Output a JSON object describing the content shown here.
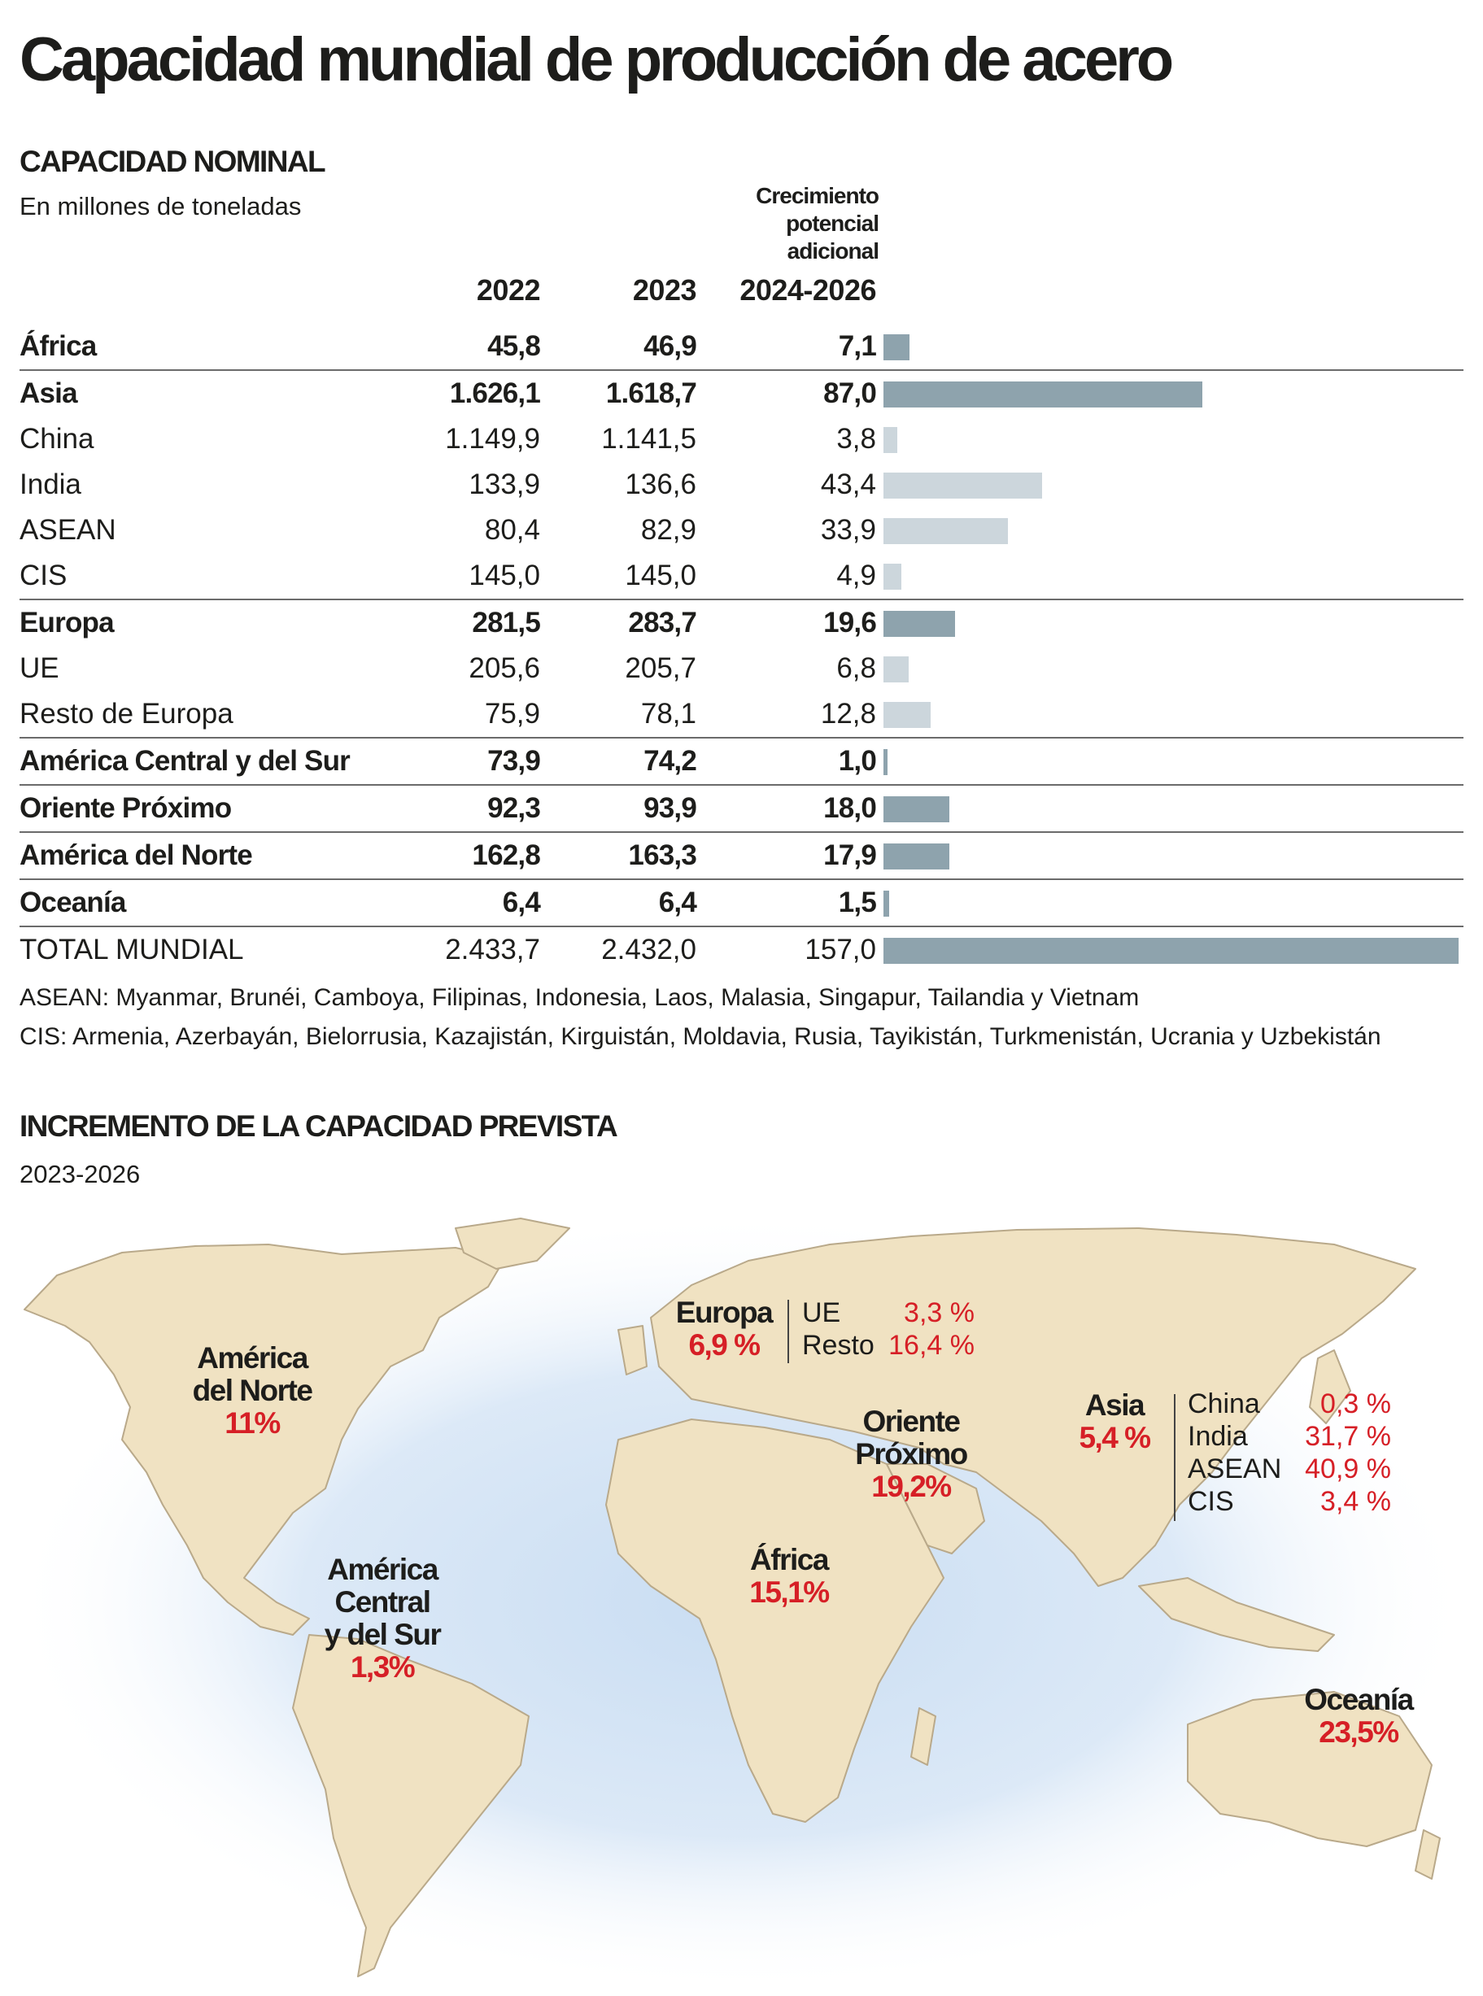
{
  "title": "Capacidad mundial de producción de acero",
  "section1": {
    "title": "CAPACIDAD NOMINAL",
    "subtitle": "En millones de toneladas",
    "growth_header": [
      "Crecimiento",
      "potencial",
      "adicional"
    ],
    "years": [
      "2022",
      "2023",
      "2024-2026"
    ]
  },
  "chart_data": {
    "type": "table",
    "columns": [
      "2022",
      "2023",
      "2024-2026"
    ],
    "rows": [
      {
        "name": "África",
        "v2022": "45,8",
        "v2023": "46,9",
        "growth": "7,1",
        "growth_value": 7.1,
        "bold": true,
        "sep": false
      },
      {
        "name": "Asia",
        "v2022": "1.626,1",
        "v2023": "1.618,7",
        "growth": "87,0",
        "growth_value": 87.0,
        "bold": true,
        "sep": true
      },
      {
        "name": "China",
        "v2022": "1.149,9",
        "v2023": "1.141,5",
        "growth": "3,8",
        "growth_value": 3.8,
        "bold": false,
        "sep": false
      },
      {
        "name": "India",
        "v2022": "133,9",
        "v2023": "136,6",
        "growth": "43,4",
        "growth_value": 43.4,
        "bold": false,
        "sep": false
      },
      {
        "name": "ASEAN",
        "v2022": "80,4",
        "v2023": "82,9",
        "growth": "33,9",
        "growth_value": 33.9,
        "bold": false,
        "sep": false
      },
      {
        "name": "CIS",
        "v2022": "145,0",
        "v2023": "145,0",
        "growth": "4,9",
        "growth_value": 4.9,
        "bold": false,
        "sep": false
      },
      {
        "name": "Europa",
        "v2022": "281,5",
        "v2023": "283,7",
        "growth": "19,6",
        "growth_value": 19.6,
        "bold": true,
        "sep": true
      },
      {
        "name": "UE",
        "v2022": "205,6",
        "v2023": "205,7",
        "growth": "6,8",
        "growth_value": 6.8,
        "bold": false,
        "sep": false
      },
      {
        "name": "Resto de Europa",
        "v2022": "75,9",
        "v2023": "78,1",
        "growth": "12,8",
        "growth_value": 12.8,
        "bold": false,
        "sep": false
      },
      {
        "name": "América Central y del Sur",
        "v2022": "73,9",
        "v2023": "74,2",
        "growth": "1,0",
        "growth_value": 1.0,
        "bold": true,
        "sep": true
      },
      {
        "name": "Oriente Próximo",
        "v2022": "92,3",
        "v2023": "93,9",
        "growth": "18,0",
        "growth_value": 18.0,
        "bold": true,
        "sep": true
      },
      {
        "name": "América del Norte",
        "v2022": "162,8",
        "v2023": "163,3",
        "growth": "17,9",
        "growth_value": 17.9,
        "bold": true,
        "sep": true
      },
      {
        "name": "Oceanía",
        "v2022": "6,4",
        "v2023": "6,4",
        "growth": "1,5",
        "growth_value": 1.5,
        "bold": true,
        "sep": true
      },
      {
        "name": "TOTAL MUNDIAL",
        "v2022": "2.433,7",
        "v2023": "2.432,0",
        "growth": "157,0",
        "growth_value": 157.0,
        "bold": false,
        "sep": true
      }
    ],
    "bar_max": 157.0,
    "colors": {
      "region_bar": "#8ea3ad",
      "subregion_bar": "#ccd6dc",
      "highlight": "#d61f26"
    }
  },
  "notes": [
    "ASEAN: Myanmar, Brunéi, Camboya, Filipinas, Indonesia, Laos, Malasia, Singapur, Tailandia y Vietnam",
    "CIS: Armenia, Azerbayán, Bielorrusia, Kazajistán, Kirguistán, Moldavia, Rusia, Tayikistán, Turkmenistán, Ucrania y Uzbekistán"
  ],
  "section2": {
    "title": "INCREMENTO DE LA CAPACIDAD PREVISTA",
    "subtitle": "2023-2026"
  },
  "map": {
    "regions": {
      "na": {
        "name1": "América",
        "name2": "del Norte",
        "pct": "11%"
      },
      "sa": {
        "name1": "América",
        "name2": "Central",
        "name3": "y del Sur",
        "pct": "1,3%"
      },
      "eu": {
        "name": "Europa",
        "pct": "6,9 %",
        "sub": [
          {
            "name": "UE",
            "value": "3,3 %"
          },
          {
            "name": "Resto",
            "value": "16,4 %"
          }
        ]
      },
      "me": {
        "name1": "Oriente",
        "name2": "Próximo",
        "pct": "19,2%"
      },
      "af": {
        "name": "África",
        "pct": "15,1%"
      },
      "as": {
        "name": "Asia",
        "pct": "5,4 %",
        "sub": [
          {
            "name": "China",
            "value": "0,3 %"
          },
          {
            "name": "India",
            "value": "31,7 %"
          },
          {
            "name": "ASEAN",
            "value": "40,9 %"
          },
          {
            "name": "CIS",
            "value": "3,4 %"
          }
        ]
      },
      "oc": {
        "name": "Oceanía",
        "pct": "23,5%"
      }
    }
  }
}
